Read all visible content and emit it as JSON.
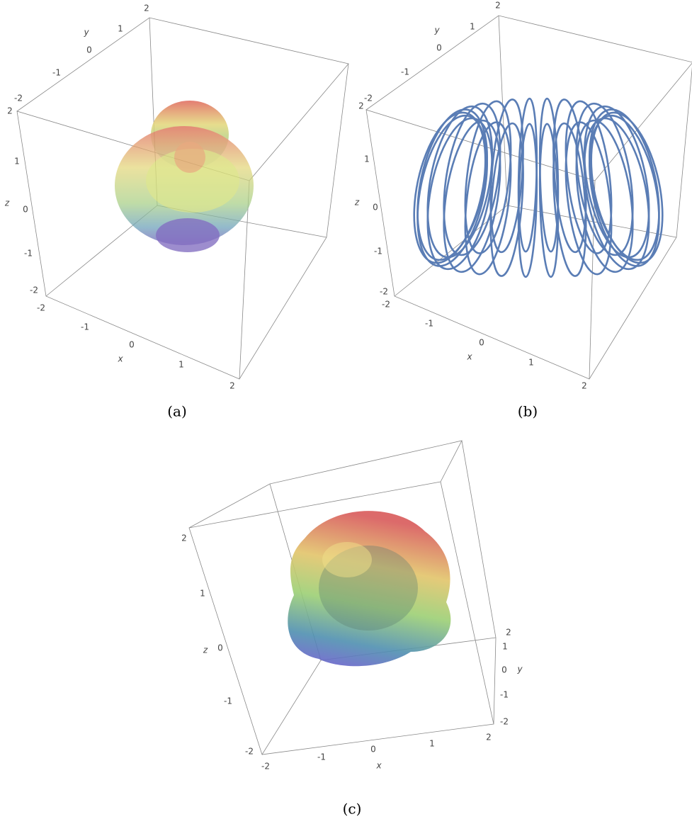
{
  "panels": [
    {
      "caption": "(a)",
      "axes": {
        "x": {
          "label": "x",
          "ticks": [
            -2,
            -1,
            0,
            1,
            2
          ]
        },
        "y": {
          "label": "y",
          "ticks": [
            -2,
            -1,
            0,
            1,
            2
          ]
        },
        "z": {
          "label": "z",
          "ticks": [
            -2,
            -1,
            0,
            1,
            2
          ]
        }
      }
    },
    {
      "caption": "(b)",
      "axes": {
        "x": {
          "label": "x",
          "ticks": [
            -2,
            -1,
            0,
            1,
            2
          ]
        },
        "y": {
          "label": "y",
          "ticks": [
            -2,
            -1,
            0,
            1,
            2
          ]
        },
        "z": {
          "label": "z",
          "ticks": [
            -2,
            -1,
            0,
            1,
            2
          ]
        }
      }
    },
    {
      "caption": "(c)",
      "axes": {
        "x": {
          "label": "x",
          "ticks": [
            -2,
            -1,
            0,
            1,
            2
          ]
        },
        "y": {
          "label": "y",
          "ticks": [
            -2,
            -1,
            0,
            1,
            2
          ]
        },
        "z": {
          "label": "z",
          "ticks": [
            -2,
            -1,
            0,
            1,
            2
          ]
        }
      }
    }
  ]
}
